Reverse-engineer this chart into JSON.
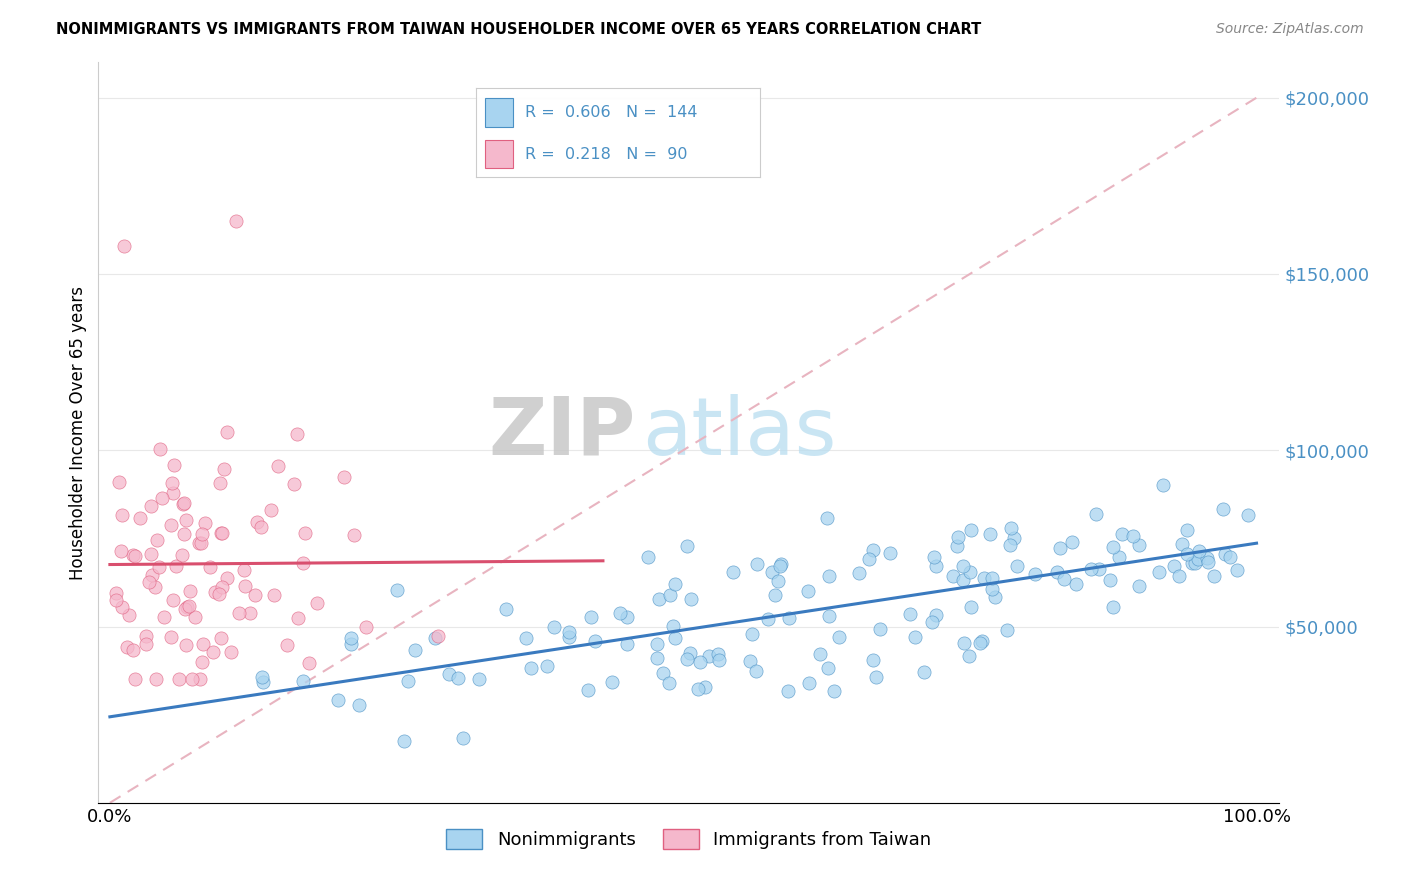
{
  "title": "NONIMMIGRANTS VS IMMIGRANTS FROM TAIWAN HOUSEHOLDER INCOME OVER 65 YEARS CORRELATION CHART",
  "source": "Source: ZipAtlas.com",
  "ylabel": "Householder Income Over 65 years",
  "legend_label_1": "Nonimmigrants",
  "legend_label_2": "Immigrants from Taiwan",
  "legend_R1": "0.606",
  "legend_N1": "144",
  "legend_R2": "0.218",
  "legend_N2": "90",
  "blue_color": "#a8d4f0",
  "blue_dark": "#4a90c4",
  "blue_line": "#3a7abf",
  "pink_color": "#f5b8cc",
  "pink_dark": "#e06080",
  "pink_line": "#d94f6e",
  "ref_line_color": "#e8b4c0",
  "grid_color": "#e8e8e8",
  "background": "#ffffff",
  "ylim_min": 0,
  "ylim_max": 210000,
  "xlim_min": 0.0,
  "xlim_max": 1.0
}
